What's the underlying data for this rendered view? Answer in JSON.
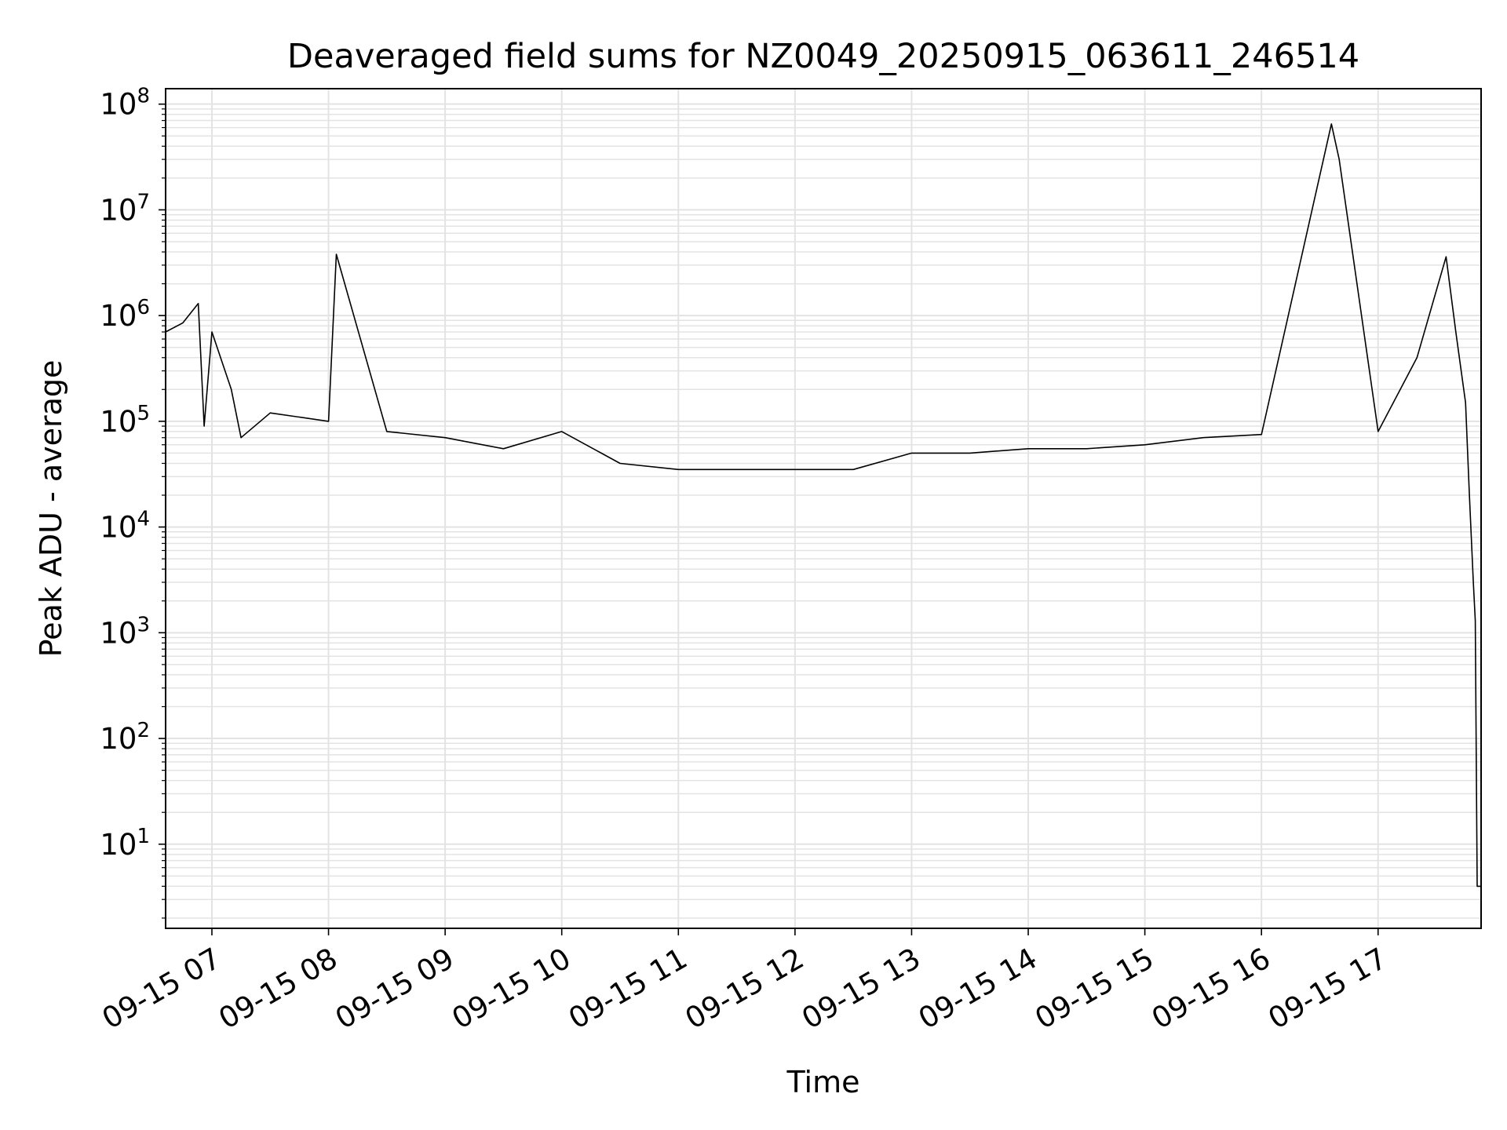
{
  "chart_data": {
    "type": "line",
    "title": "Deaveraged field sums for NZ0049_20250915_063611_246514",
    "xlabel": "Time",
    "ylabel": "Peak ADU - average",
    "xscale": "time",
    "yscale": "log",
    "xlim": [
      "2025-09-15T06:36:11",
      "2025-09-15T17:53:00"
    ],
    "ylim": [
      1.6,
      140000000
    ],
    "grid": true,
    "legend": "none",
    "line_color": "#000000",
    "grid_color": "#e3e3e3",
    "x_ticks": [
      {
        "t": "2025-09-15T07:00:00",
        "label": "09-15 07"
      },
      {
        "t": "2025-09-15T08:00:00",
        "label": "09-15 08"
      },
      {
        "t": "2025-09-15T09:00:00",
        "label": "09-15 09"
      },
      {
        "t": "2025-09-15T10:00:00",
        "label": "09-15 10"
      },
      {
        "t": "2025-09-15T11:00:00",
        "label": "09-15 11"
      },
      {
        "t": "2025-09-15T12:00:00",
        "label": "09-15 12"
      },
      {
        "t": "2025-09-15T13:00:00",
        "label": "09-15 13"
      },
      {
        "t": "2025-09-15T14:00:00",
        "label": "09-15 14"
      },
      {
        "t": "2025-09-15T15:00:00",
        "label": "09-15 15"
      },
      {
        "t": "2025-09-15T16:00:00",
        "label": "09-15 16"
      },
      {
        "t": "2025-09-15T17:00:00",
        "label": "09-15 17"
      }
    ],
    "y_ticks": [
      {
        "v": 10,
        "base": "10",
        "exp": "1"
      },
      {
        "v": 100,
        "base": "10",
        "exp": "2"
      },
      {
        "v": 1000,
        "base": "10",
        "exp": "3"
      },
      {
        "v": 10000,
        "base": "10",
        "exp": "4"
      },
      {
        "v": 100000,
        "base": "10",
        "exp": "5"
      },
      {
        "v": 1000000,
        "base": "10",
        "exp": "6"
      },
      {
        "v": 10000000,
        "base": "10",
        "exp": "7"
      },
      {
        "v": 100000000,
        "base": "10",
        "exp": "8"
      }
    ],
    "series": [
      {
        "points": [
          {
            "t": "2025-09-15T06:36:11",
            "y": 700000
          },
          {
            "t": "2025-09-15T06:45:00",
            "y": 850000
          },
          {
            "t": "2025-09-15T06:53:00",
            "y": 1300000
          },
          {
            "t": "2025-09-15T06:56:00",
            "y": 90000
          },
          {
            "t": "2025-09-15T07:00:00",
            "y": 700000
          },
          {
            "t": "2025-09-15T07:10:00",
            "y": 200000
          },
          {
            "t": "2025-09-15T07:15:00",
            "y": 70000
          },
          {
            "t": "2025-09-15T07:30:00",
            "y": 120000
          },
          {
            "t": "2025-09-15T08:00:00",
            "y": 100000
          },
          {
            "t": "2025-09-15T08:04:00",
            "y": 3800000
          },
          {
            "t": "2025-09-15T08:30:00",
            "y": 80000
          },
          {
            "t": "2025-09-15T09:00:00",
            "y": 70000
          },
          {
            "t": "2025-09-15T09:30:00",
            "y": 55000
          },
          {
            "t": "2025-09-15T10:00:00",
            "y": 80000
          },
          {
            "t": "2025-09-15T10:30:00",
            "y": 40000
          },
          {
            "t": "2025-09-15T11:00:00",
            "y": 35000
          },
          {
            "t": "2025-09-15T11:30:00",
            "y": 35000
          },
          {
            "t": "2025-09-15T12:00:00",
            "y": 35000
          },
          {
            "t": "2025-09-15T12:30:00",
            "y": 35000
          },
          {
            "t": "2025-09-15T13:00:00",
            "y": 50000
          },
          {
            "t": "2025-09-15T13:30:00",
            "y": 50000
          },
          {
            "t": "2025-09-15T14:00:00",
            "y": 55000
          },
          {
            "t": "2025-09-15T14:30:00",
            "y": 55000
          },
          {
            "t": "2025-09-15T15:00:00",
            "y": 60000
          },
          {
            "t": "2025-09-15T15:30:00",
            "y": 70000
          },
          {
            "t": "2025-09-15T16:00:00",
            "y": 75000
          },
          {
            "t": "2025-09-15T16:36:00",
            "y": 65000000
          },
          {
            "t": "2025-09-15T16:40:00",
            "y": 30000000
          },
          {
            "t": "2025-09-15T17:00:00",
            "y": 80000
          },
          {
            "t": "2025-09-15T17:20:00",
            "y": 400000
          },
          {
            "t": "2025-09-15T17:35:00",
            "y": 3600000
          },
          {
            "t": "2025-09-15T17:40:00",
            "y": 700000
          },
          {
            "t": "2025-09-15T17:45:00",
            "y": 150000
          },
          {
            "t": "2025-09-15T17:47:00",
            "y": 20000
          },
          {
            "t": "2025-09-15T17:49:00",
            "y": 3000
          },
          {
            "t": "2025-09-15T17:50:00",
            "y": 1300
          },
          {
            "t": "2025-09-15T17:51:00",
            "y": 4
          },
          {
            "t": "2025-09-15T17:53:00",
            "y": 4
          }
        ]
      }
    ]
  }
}
